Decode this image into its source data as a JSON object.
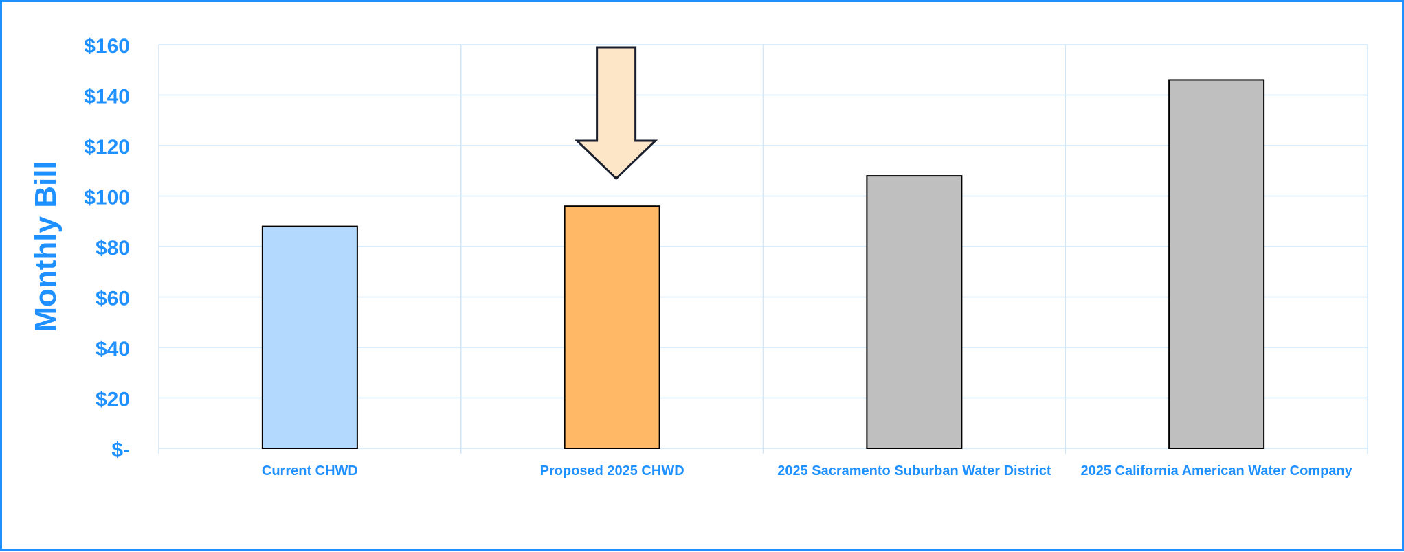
{
  "chart_data": {
    "type": "bar",
    "ylabel": "Monthly Bill",
    "xlabel": "",
    "title": "",
    "ylim": [
      0,
      160
    ],
    "y_ticks": [
      0,
      20,
      40,
      60,
      80,
      100,
      120,
      140,
      160
    ],
    "y_tick_labels": [
      "$-",
      "$20",
      "$40",
      "$60",
      "$80",
      "$100",
      "$120",
      "$140",
      "$160"
    ],
    "categories": [
      "Current CHWD",
      "Proposed 2025 CHWD",
      "2025 Sacramento Suburban Water District",
      "2025 California American Water Company"
    ],
    "values": [
      88,
      96,
      108,
      146
    ],
    "bar_colors": [
      "#b3d9ff",
      "#ffb866",
      "#bfbfbf",
      "#bfbfbf"
    ],
    "grid": true,
    "annotation": {
      "type": "down-arrow",
      "target_category": "Proposed 2025 CHWD",
      "fill": "#fde6c8"
    }
  },
  "colors": {
    "text_accent": "#1e90ff",
    "grid": "#cfe6f8",
    "frame": "#1e90ff",
    "bar_outline": "#000000"
  }
}
